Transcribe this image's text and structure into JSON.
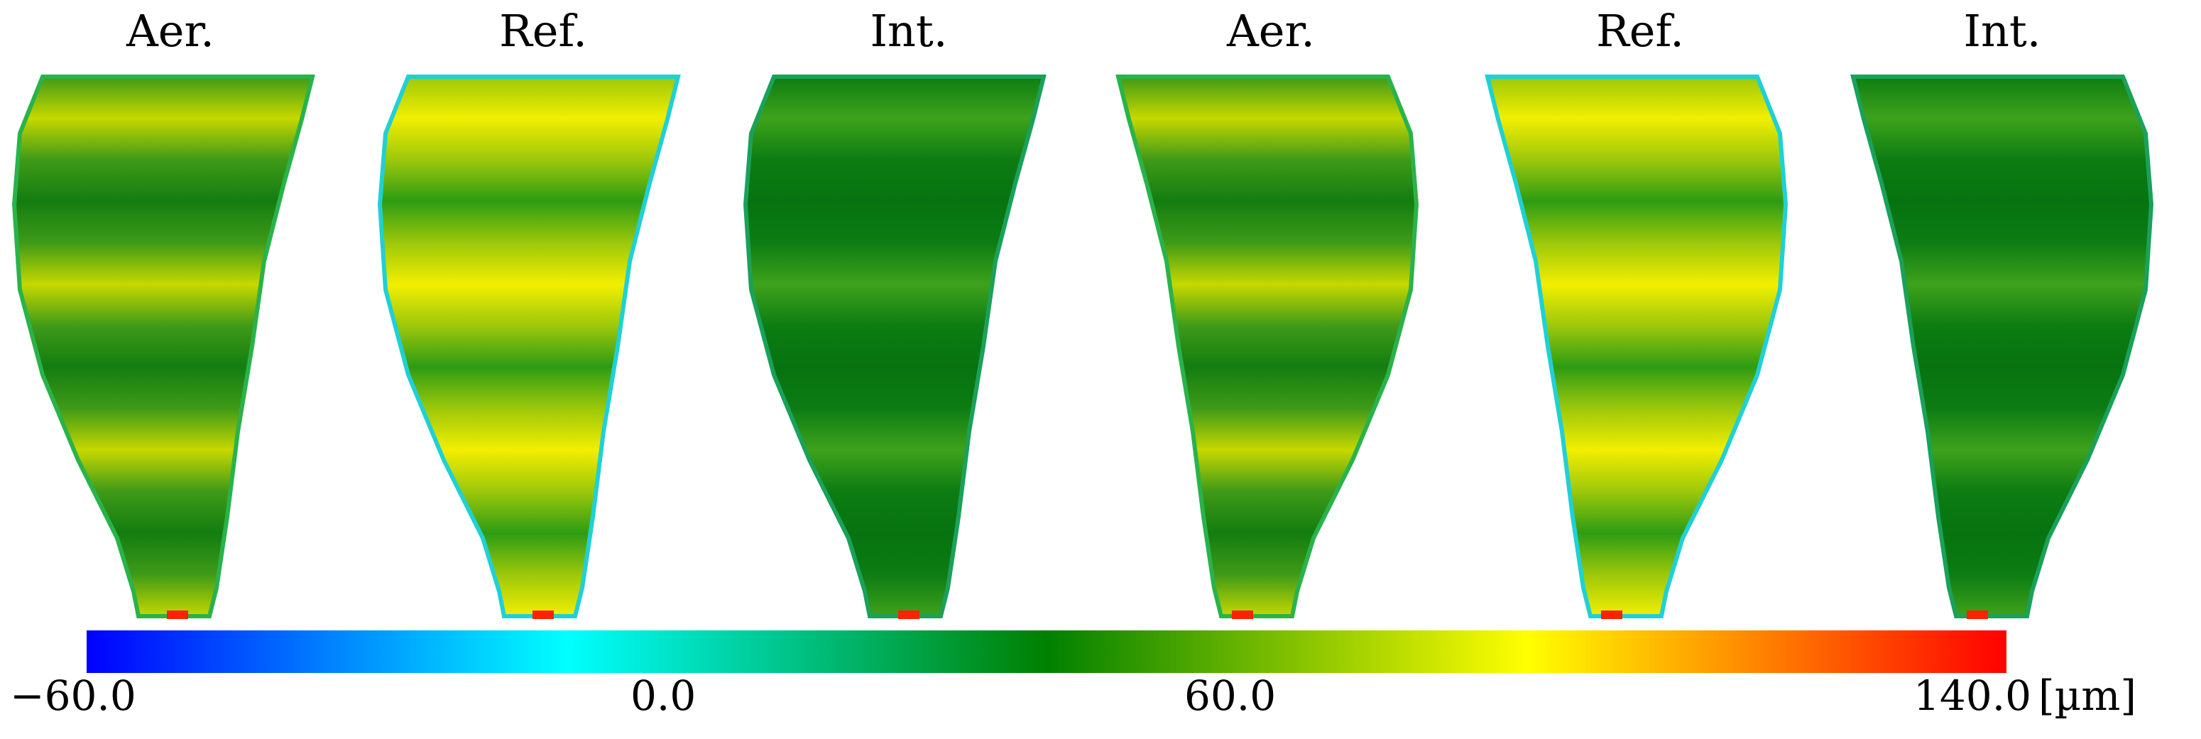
{
  "panels": [
    {
      "title": "Aer.",
      "palette": "green-yellow"
    },
    {
      "title": "Ref.",
      "palette": "yellow-cyan"
    },
    {
      "title": "Int.",
      "palette": "dark-green"
    },
    {
      "title": "Aer.",
      "palette": "green-yellow"
    },
    {
      "title": "Ref.",
      "palette": "yellow-cyan"
    },
    {
      "title": "Int.",
      "palette": "dark-green"
    }
  ],
  "colorbar": {
    "ticks": [
      "−60.0",
      "0.0",
      "60.0",
      "140.0"
    ],
    "unit": "[µm]",
    "min": -60.0,
    "max": 140.0,
    "colors": [
      "#0000ff",
      "#00ffff",
      "#008000",
      "#ffff00",
      "#ff0000"
    ]
  }
}
